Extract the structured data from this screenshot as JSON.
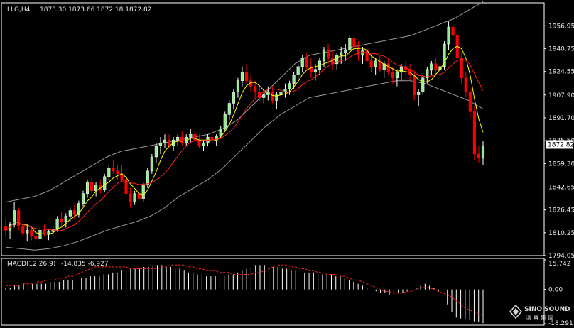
{
  "chart_data": [
    {
      "type": "candlestick",
      "symbol_header": "LLG,H4",
      "ohlc_header": [
        "1873.30",
        "1873.66",
        "1872.18",
        "1872.82"
      ],
      "current_price": "1872.82",
      "ylim": [
        1794.05,
        1973.2
      ],
      "y_ticks": [
        "1956.95",
        "1940.75",
        "1924.55",
        "1907.90",
        "1891.70",
        "1875.50",
        "1859.30",
        "1842.65",
        "1826.45",
        "1810.25",
        "1794.05"
      ],
      "colors": {
        "bull": "#ffffff",
        "bull_fill": "#90ee90",
        "bear": "#ff0000",
        "ma_fast": "#ffff00",
        "ma_slow": "#ff2020",
        "bands": "#9a9a9a",
        "grid": "#ffffff"
      },
      "candles": [
        [
          1815,
          1820,
          1808,
          1812
        ],
        [
          1812,
          1818,
          1806,
          1816
        ],
        [
          1816,
          1832,
          1814,
          1826
        ],
        [
          1826,
          1828,
          1812,
          1815
        ],
        [
          1815,
          1820,
          1808,
          1810
        ],
        [
          1810,
          1816,
          1804,
          1812
        ],
        [
          1812,
          1815,
          1805,
          1808
        ],
        [
          1808,
          1812,
          1802,
          1806
        ],
        [
          1806,
          1814,
          1804,
          1812
        ],
        [
          1812,
          1816,
          1808,
          1809
        ],
        [
          1809,
          1813,
          1805,
          1811
        ],
        [
          1811,
          1815,
          1807,
          1813
        ],
        [
          1813,
          1822,
          1811,
          1820
        ],
        [
          1820,
          1825,
          1815,
          1818
        ],
        [
          1818,
          1824,
          1814,
          1822
        ],
        [
          1822,
          1828,
          1818,
          1826
        ],
        [
          1826,
          1830,
          1820,
          1823
        ],
        [
          1823,
          1833,
          1821,
          1831
        ],
        [
          1831,
          1840,
          1829,
          1838
        ],
        [
          1838,
          1848,
          1835,
          1846
        ],
        [
          1846,
          1850,
          1838,
          1840
        ],
        [
          1840,
          1846,
          1836,
          1844
        ],
        [
          1844,
          1848,
          1838,
          1841
        ],
        [
          1841,
          1852,
          1839,
          1850
        ],
        [
          1850,
          1858,
          1848,
          1856
        ],
        [
          1856,
          1862,
          1852,
          1854
        ],
        [
          1854,
          1858,
          1848,
          1852
        ],
        [
          1852,
          1858,
          1846,
          1848
        ],
        [
          1848,
          1852,
          1836,
          1838
        ],
        [
          1838,
          1842,
          1828,
          1832
        ],
        [
          1832,
          1840,
          1830,
          1838
        ],
        [
          1838,
          1842,
          1832,
          1834
        ],
        [
          1834,
          1846,
          1832,
          1844
        ],
        [
          1844,
          1856,
          1842,
          1854
        ],
        [
          1854,
          1866,
          1852,
          1864
        ],
        [
          1864,
          1874,
          1860,
          1872
        ],
        [
          1872,
          1878,
          1866,
          1874
        ],
        [
          1874,
          1880,
          1870,
          1876
        ],
        [
          1876,
          1880,
          1870,
          1872
        ],
        [
          1872,
          1878,
          1868,
          1876
        ],
        [
          1876,
          1880,
          1872,
          1878
        ],
        [
          1878,
          1882,
          1872,
          1874
        ],
        [
          1874,
          1880,
          1872,
          1878
        ],
        [
          1878,
          1884,
          1874,
          1880
        ],
        [
          1880,
          1884,
          1874,
          1876
        ],
        [
          1876,
          1880,
          1870,
          1872
        ],
        [
          1872,
          1876,
          1868,
          1874
        ],
        [
          1874,
          1880,
          1872,
          1878
        ],
        [
          1878,
          1882,
          1874,
          1876
        ],
        [
          1876,
          1880,
          1872,
          1879
        ],
        [
          1879,
          1886,
          1877,
          1884
        ],
        [
          1884,
          1896,
          1882,
          1894
        ],
        [
          1894,
          1904,
          1890,
          1902
        ],
        [
          1902,
          1912,
          1898,
          1910
        ],
        [
          1910,
          1920,
          1906,
          1918
        ],
        [
          1918,
          1928,
          1914,
          1924
        ],
        [
          1924,
          1930,
          1916,
          1918
        ],
        [
          1918,
          1922,
          1910,
          1914
        ],
        [
          1914,
          1918,
          1906,
          1910
        ],
        [
          1910,
          1914,
          1904,
          1906
        ],
        [
          1906,
          1912,
          1902,
          1908
        ],
        [
          1908,
          1914,
          1904,
          1910
        ],
        [
          1910,
          1914,
          1902,
          1904
        ],
        [
          1904,
          1910,
          1898,
          1908
        ],
        [
          1908,
          1914,
          1904,
          1910
        ],
        [
          1910,
          1916,
          1906,
          1912
        ],
        [
          1912,
          1918,
          1908,
          1916
        ],
        [
          1916,
          1924,
          1912,
          1922
        ],
        [
          1922,
          1930,
          1918,
          1928
        ],
        [
          1928,
          1936,
          1924,
          1934
        ],
        [
          1934,
          1938,
          1926,
          1928
        ],
        [
          1928,
          1934,
          1920,
          1924
        ],
        [
          1924,
          1930,
          1918,
          1926
        ],
        [
          1926,
          1934,
          1922,
          1932
        ],
        [
          1932,
          1942,
          1928,
          1940
        ],
        [
          1940,
          1944,
          1930,
          1934
        ],
        [
          1934,
          1940,
          1926,
          1930
        ],
        [
          1930,
          1938,
          1926,
          1936
        ],
        [
          1936,
          1942,
          1930,
          1938
        ],
        [
          1938,
          1944,
          1932,
          1940
        ],
        [
          1940,
          1950,
          1936,
          1948
        ],
        [
          1948,
          1952,
          1938,
          1942
        ],
        [
          1942,
          1946,
          1932,
          1936
        ],
        [
          1936,
          1942,
          1930,
          1940
        ],
        [
          1940,
          1944,
          1930,
          1932
        ],
        [
          1932,
          1936,
          1924,
          1928
        ],
        [
          1928,
          1934,
          1922,
          1932
        ],
        [
          1932,
          1936,
          1924,
          1926
        ],
        [
          1926,
          1932,
          1920,
          1930
        ],
        [
          1930,
          1934,
          1922,
          1924
        ],
        [
          1924,
          1928,
          1916,
          1920
        ],
        [
          1920,
          1926,
          1914,
          1924
        ],
        [
          1924,
          1930,
          1918,
          1928
        ],
        [
          1928,
          1932,
          1922,
          1926
        ],
        [
          1926,
          1930,
          1918,
          1922
        ],
        [
          1922,
          1926,
          1904,
          1908
        ],
        [
          1908,
          1912,
          1900,
          1910
        ],
        [
          1910,
          1922,
          1908,
          1920
        ],
        [
          1920,
          1928,
          1916,
          1926
        ],
        [
          1926,
          1932,
          1922,
          1930
        ],
        [
          1930,
          1934,
          1922,
          1926
        ],
        [
          1926,
          1930,
          1918,
          1928
        ],
        [
          1928,
          1946,
          1926,
          1944
        ],
        [
          1944,
          1960,
          1940,
          1956
        ],
        [
          1956,
          1962,
          1946,
          1950
        ],
        [
          1950,
          1956,
          1930,
          1934
        ],
        [
          1934,
          1938,
          1916,
          1920
        ],
        [
          1920,
          1924,
          1906,
          1910
        ],
        [
          1910,
          1914,
          1892,
          1896
        ],
        [
          1896,
          1900,
          1862,
          1866
        ],
        [
          1866,
          1872,
          1860,
          1863
        ],
        [
          1863,
          1875,
          1858,
          1872
        ]
      ],
      "bands": {
        "upper": [
          1832,
          1834,
          1836,
          1840,
          1846,
          1852,
          1858,
          1864,
          1868,
          1870,
          1872,
          1874,
          1876,
          1878,
          1880,
          1884,
          1890,
          1900,
          1910,
          1920,
          1930,
          1936,
          1938,
          1940,
          1942,
          1944,
          1946,
          1948,
          1950,
          1954,
          1958,
          1962,
          1968,
          1974
        ],
        "lower": [
          1800,
          1799,
          1798,
          1799,
          1801,
          1804,
          1808,
          1812,
          1815,
          1818,
          1822,
          1828,
          1836,
          1842,
          1848,
          1856,
          1866,
          1876,
          1886,
          1894,
          1900,
          1906,
          1908,
          1910,
          1912,
          1914,
          1916,
          1918,
          1918,
          1916,
          1912,
          1908,
          1904,
          1898
        ]
      },
      "macd": {
        "label": "MACD(12,26,9)",
        "params_text": "-14.835 -6.927",
        "ylim": [
          -18.291,
          15.742
        ],
        "y_ticks": [
          "15.742",
          "0.00",
          "-18.291"
        ],
        "histogram": [
          1,
          1,
          2,
          2,
          3,
          3,
          3,
          3,
          3,
          3,
          4,
          4,
          4,
          5,
          5,
          5,
          6,
          6,
          6,
          7,
          7,
          7,
          8,
          8,
          9,
          9,
          10,
          10,
          11,
          11,
          11,
          12,
          12,
          13,
          13,
          13,
          12,
          12,
          11,
          11,
          10,
          9,
          9,
          8,
          8,
          7,
          7,
          7,
          7,
          7,
          8,
          8,
          9,
          10,
          11,
          12,
          13,
          13,
          13,
          12,
          12,
          12,
          11,
          11,
          10,
          10,
          9,
          9,
          9,
          9,
          8,
          8,
          8,
          8,
          7,
          7,
          6,
          5,
          4,
          3,
          2,
          1,
          0,
          -1,
          -2,
          -2,
          -3,
          -3,
          -2,
          -2,
          -1,
          0,
          1,
          2,
          3,
          2,
          1,
          -1,
          -4,
          -8,
          -12,
          -15,
          -15.5,
          -16,
          -16.5,
          -17,
          -17.5,
          -18
        ],
        "signal": [
          2,
          2,
          2,
          2,
          3,
          3,
          3,
          4,
          4,
          5,
          5,
          5,
          6,
          6,
          7,
          7,
          8,
          9,
          10,
          11,
          12,
          12,
          12,
          12,
          12,
          12,
          12,
          12,
          11,
          11,
          11,
          11,
          11,
          11,
          11,
          12,
          12,
          13,
          13,
          13,
          13,
          12,
          12,
          11,
          11,
          10,
          10,
          10,
          9,
          9,
          9,
          8,
          8,
          8,
          8,
          8,
          9,
          9,
          10,
          11,
          12,
          13,
          13,
          13,
          12,
          12,
          11,
          11,
          10,
          10,
          9,
          9,
          8,
          8,
          8,
          7,
          7,
          6,
          5,
          5,
          4,
          3,
          2,
          1,
          0,
          -1,
          -1,
          -2,
          -2,
          -2,
          -1,
          -1,
          0,
          1,
          1,
          1,
          0,
          -1,
          -2,
          -3,
          -4,
          -6,
          -8,
          -10,
          -11,
          -12,
          -13,
          -14
        ]
      }
    }
  ],
  "watermark": {
    "brand": "SINO SOUND",
    "sub": "漢 聲 集 團"
  }
}
